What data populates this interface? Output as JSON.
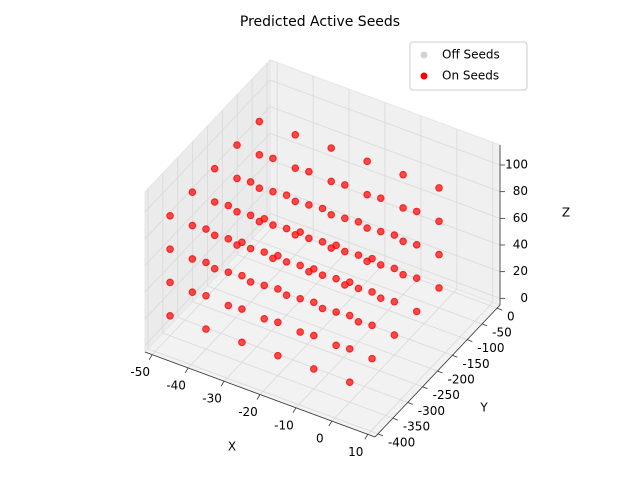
{
  "chart_data": {
    "type": "scatter3d",
    "title": "Predicted Active Seeds",
    "xlabel": "X",
    "ylabel": "Y",
    "zlabel": "Z",
    "xlim": [
      -52,
      12
    ],
    "ylim": [
      -410,
      10
    ],
    "zlim": [
      -5,
      115
    ],
    "xticks": [
      -50,
      -40,
      -30,
      -20,
      -10,
      0,
      10
    ],
    "yticks": [
      -400,
      -350,
      -300,
      -250,
      -200,
      -150,
      -100,
      -50,
      0
    ],
    "zticks": [
      0,
      20,
      40,
      60,
      80,
      100
    ],
    "grid": true,
    "legend": "upper right",
    "series": [
      {
        "name": "Off Seeds",
        "color": "#d3d3d3",
        "x": [],
        "y": [],
        "z": []
      },
      {
        "name": "On Seeds",
        "color": "#ff0000",
        "x": [
          -50,
          -50,
          -50,
          -50,
          -50,
          -50,
          -50,
          -50,
          -50,
          -50,
          -50,
          -50,
          -50,
          -50,
          -50,
          -50,
          -50,
          -50,
          -50,
          -50,
          -40,
          -40,
          -40,
          -40,
          -40,
          -40,
          -40,
          -40,
          -40,
          -40,
          -40,
          -40,
          -40,
          -40,
          -40,
          -40,
          -40,
          -40,
          -40,
          -40,
          -30,
          -30,
          -30,
          -30,
          -30,
          -30,
          -30,
          -30,
          -30,
          -30,
          -30,
          -30,
          -30,
          -30,
          -30,
          -30,
          -30,
          -30,
          -30,
          -30,
          -20,
          -20,
          -20,
          -20,
          -20,
          -20,
          -20,
          -20,
          -20,
          -20,
          -20,
          -20,
          -20,
          -20,
          -20,
          -20,
          -20,
          -20,
          -20,
          -20,
          -10,
          -10,
          -10,
          -10,
          -10,
          -10,
          -10,
          -10,
          -10,
          -10,
          -10,
          -10,
          -10,
          -10,
          -10,
          -10,
          -10,
          -10,
          -10,
          -10,
          0,
          0,
          0,
          0,
          0,
          0,
          0,
          0,
          0,
          0,
          0,
          0,
          0,
          0,
          0,
          0,
          0,
          0,
          0,
          0
        ],
        "y": [
          -350,
          -350,
          -350,
          -350,
          -275,
          -275,
          -275,
          -275,
          -200,
          -200,
          -200,
          -200,
          -125,
          -125,
          -125,
          -125,
          -50,
          -50,
          -50,
          -50,
          -350,
          -350,
          -350,
          -350,
          -275,
          -275,
          -275,
          -275,
          -200,
          -200,
          -200,
          -200,
          -125,
          -125,
          -125,
          -125,
          -50,
          -50,
          -50,
          -50,
          -350,
          -350,
          -350,
          -350,
          -275,
          -275,
          -275,
          -275,
          -200,
          -200,
          -200,
          -200,
          -125,
          -125,
          -125,
          -125,
          -50,
          -50,
          -50,
          -50,
          -350,
          -350,
          -350,
          -350,
          -275,
          -275,
          -275,
          -275,
          -200,
          -200,
          -200,
          -200,
          -125,
          -125,
          -125,
          -125,
          -50,
          -50,
          -50,
          -50,
          -350,
          -350,
          -350,
          -350,
          -275,
          -275,
          -275,
          -275,
          -200,
          -200,
          -200,
          -200,
          -125,
          -125,
          -125,
          -125,
          -50,
          -50,
          -50,
          -50,
          -350,
          -350,
          -350,
          -350,
          -275,
          -275,
          -275,
          -275,
          -200,
          -200,
          -200,
          -200,
          -125,
          -125,
          -125,
          -125,
          -50,
          -50,
          -50,
          -50
        ],
        "z": [
          10,
          35,
          60,
          85,
          10,
          35,
          60,
          85,
          10,
          35,
          60,
          85,
          10,
          35,
          60,
          85,
          10,
          35,
          60,
          85,
          10,
          35,
          60,
          85,
          10,
          35,
          60,
          85,
          10,
          35,
          60,
          85,
          10,
          35,
          60,
          85,
          10,
          35,
          60,
          85,
          10,
          35,
          60,
          85,
          10,
          35,
          60,
          85,
          10,
          35,
          60,
          85,
          10,
          35,
          60,
          85,
          10,
          35,
          60,
          85,
          10,
          35,
          60,
          85,
          10,
          35,
          60,
          85,
          10,
          35,
          60,
          85,
          10,
          35,
          60,
          85,
          10,
          35,
          60,
          85,
          10,
          35,
          60,
          85,
          10,
          35,
          60,
          85,
          10,
          35,
          60,
          85,
          10,
          35,
          60,
          85,
          10,
          35,
          60,
          85,
          10,
          35,
          60,
          85,
          10,
          35,
          60,
          85,
          10,
          35,
          60,
          85,
          10,
          35,
          60,
          85,
          10,
          35,
          60,
          85
        ]
      }
    ]
  }
}
